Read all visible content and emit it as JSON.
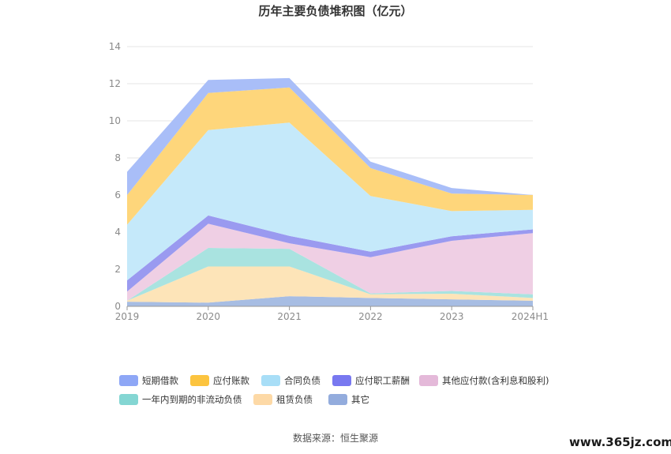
{
  "chart_data": {
    "type": "area",
    "stacked": true,
    "title": "历年主要负债堆积图（亿元）",
    "categories": [
      "2019",
      "2020",
      "2021",
      "2022",
      "2023",
      "2024H1"
    ],
    "ylim": [
      0,
      14
    ],
    "yticks": [
      "0",
      "2",
      "4",
      "6",
      "8",
      "10",
      "12",
      "14"
    ],
    "grid": true,
    "legend_position": "bottom",
    "series": [
      {
        "name": "其它",
        "color": "#a7bde3",
        "values": [
          0.25,
          0.2,
          0.55,
          0.45,
          0.38,
          0.3
        ]
      },
      {
        "name": "租赁负债",
        "color": "#fde4b8",
        "values": [
          0.05,
          1.95,
          1.6,
          0.2,
          0.3,
          0.15
        ]
      },
      {
        "name": "一年内到期的非流动负债",
        "color": "#a9e3e0",
        "values": [
          0.0,
          1.0,
          0.95,
          0.05,
          0.15,
          0.2
        ]
      },
      {
        "name": "其他应付款(含利息和股利)",
        "color": "#efcfe4",
        "values": [
          0.5,
          1.3,
          0.3,
          1.95,
          2.7,
          3.3
        ]
      },
      {
        "name": "应付职工薪酬",
        "color": "#9a9af0",
        "values": [
          0.6,
          0.45,
          0.4,
          0.3,
          0.25,
          0.2
        ]
      },
      {
        "name": "合同负债",
        "color": "#c5e9fa",
        "values": [
          3.0,
          4.6,
          6.1,
          3.0,
          1.35,
          1.05
        ]
      },
      {
        "name": "应付账款",
        "color": "#fed67b",
        "values": [
          1.6,
          2.0,
          1.9,
          1.5,
          0.95,
          0.8
        ]
      },
      {
        "name": "短期借款",
        "color": "#a9bef8",
        "values": [
          1.25,
          0.7,
          0.5,
          0.35,
          0.3,
          0.0
        ]
      }
    ],
    "legend": [
      {
        "name": "短期借款",
        "color": "#8ea7f6"
      },
      {
        "name": "应付账款",
        "color": "#fcc43f"
      },
      {
        "name": "合同负债",
        "color": "#a8def7"
      },
      {
        "name": "应付职工薪酬",
        "color": "#7878f0"
      },
      {
        "name": "其他应付款(含利息和股利)",
        "color": "#e4b9d9"
      },
      {
        "name": "一年内到期的非流动负债",
        "color": "#84d6d3"
      },
      {
        "name": "租赁负债",
        "color": "#fdd9a6"
      },
      {
        "name": "其它",
        "color": "#93acdd"
      }
    ]
  },
  "source_text": "数据来源：恒生聚源",
  "watermark_text": "www.365jz.com"
}
